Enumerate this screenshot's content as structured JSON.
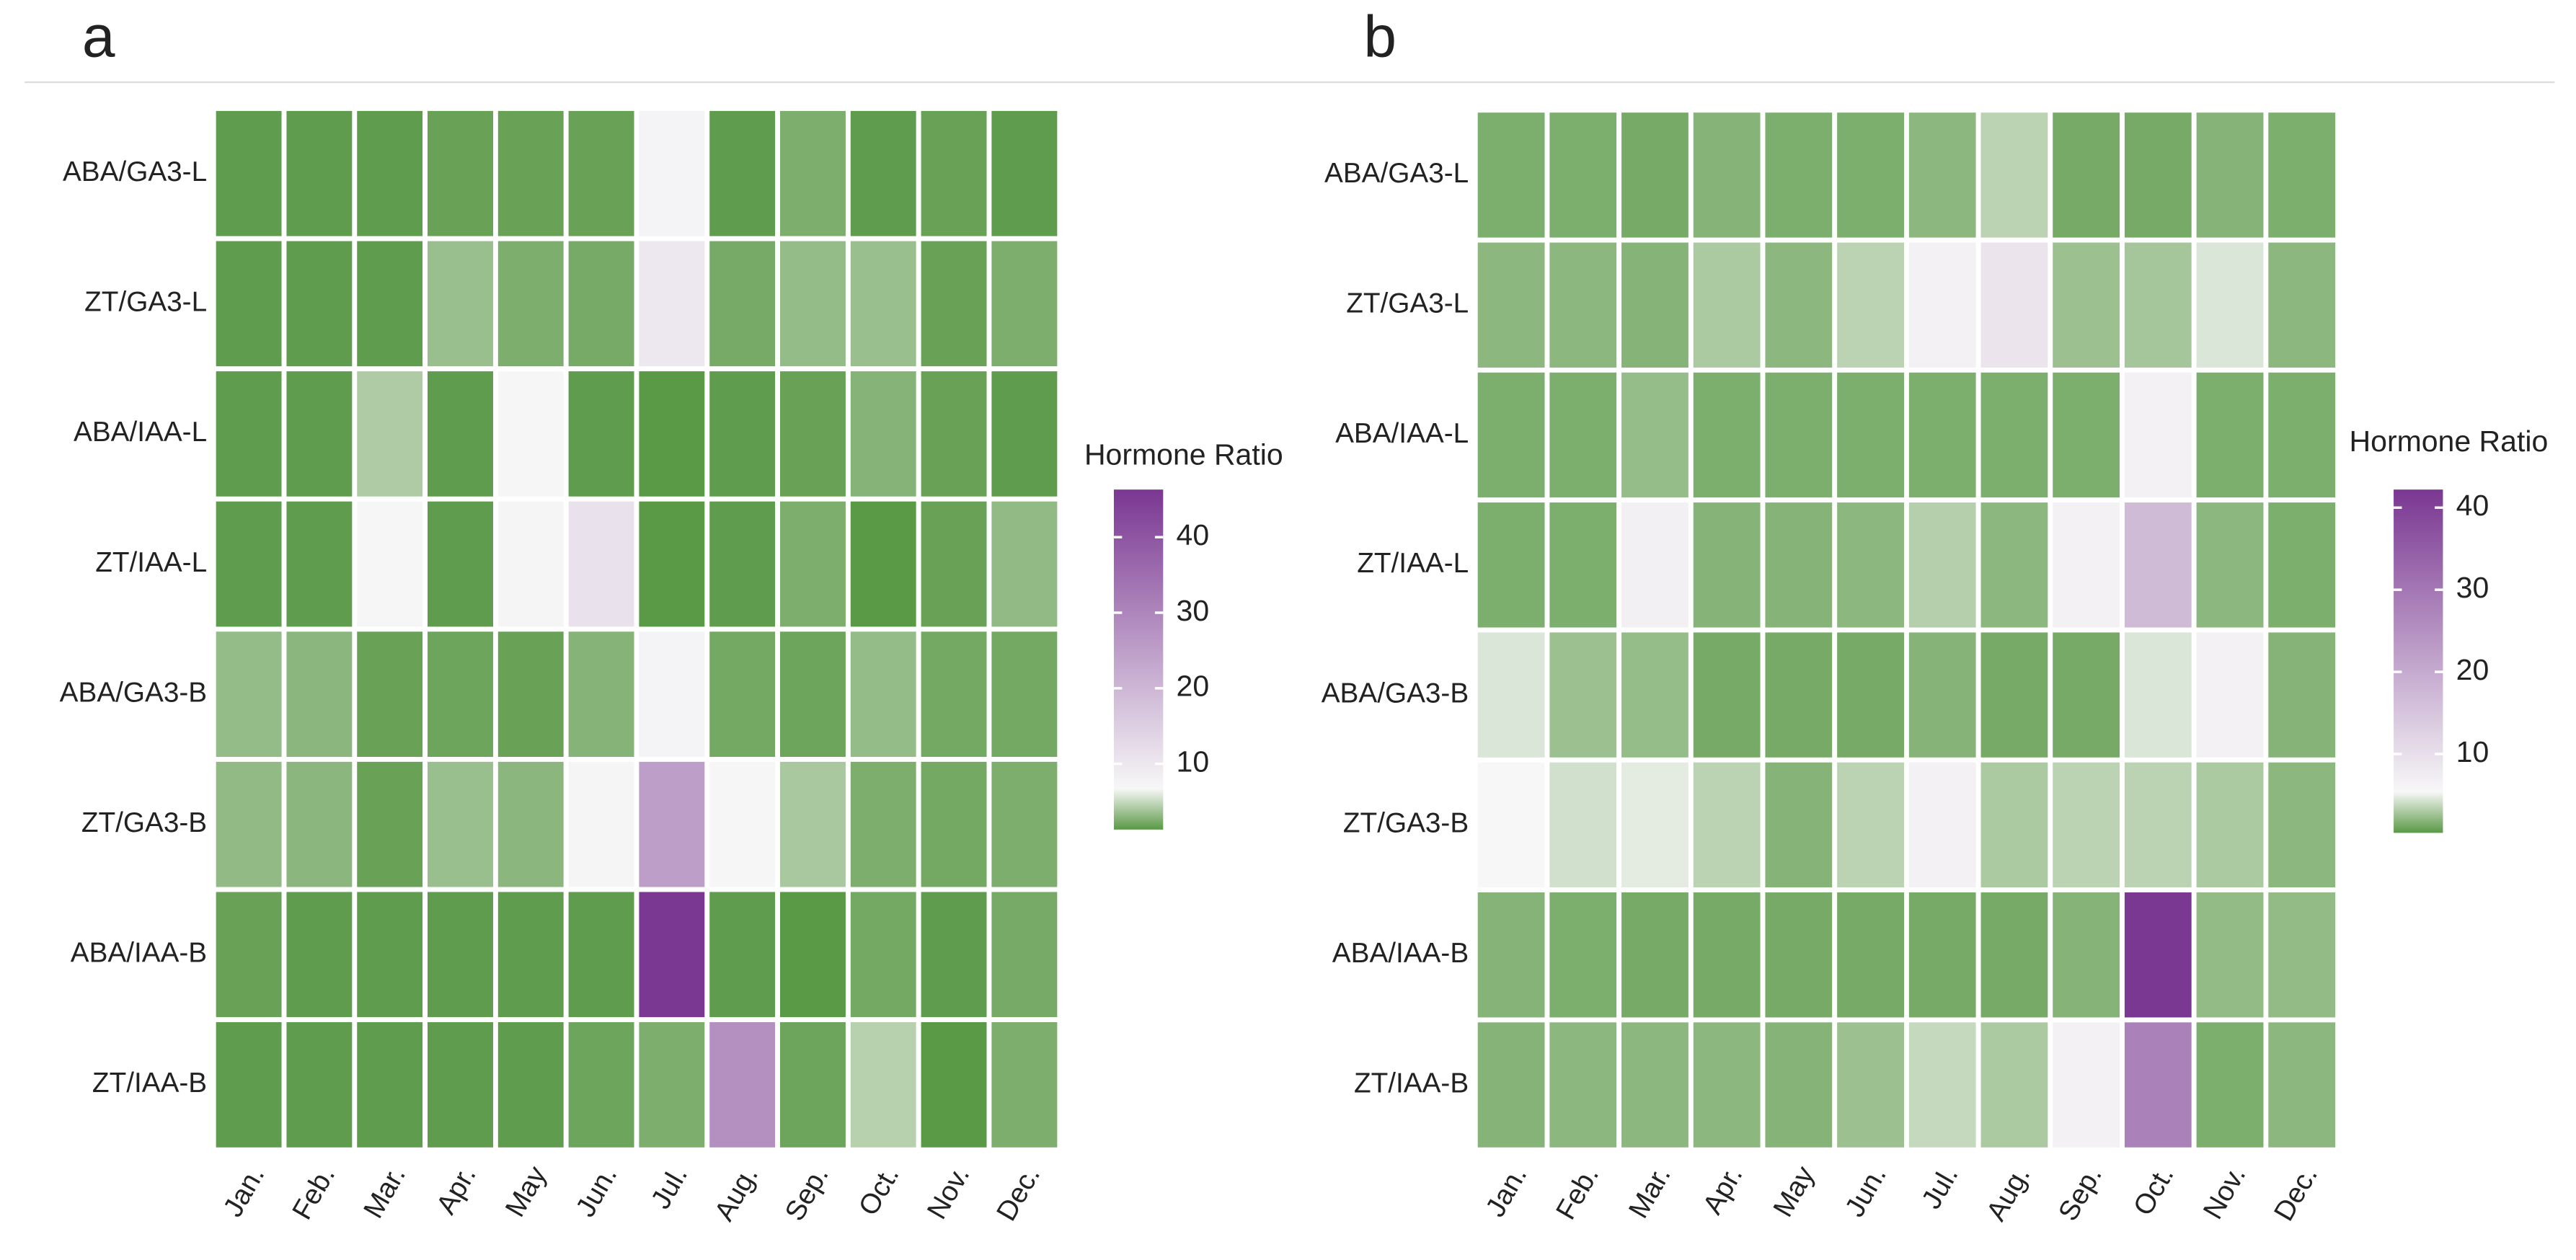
{
  "chart_data": [
    {
      "type": "heatmap",
      "panel_label": "a",
      "x": [
        "Jan.",
        "Feb.",
        "Mar.",
        "Apr.",
        "May",
        "Jun.",
        "Jul.",
        "Aug.",
        "Sep.",
        "Oct.",
        "Nov.",
        "Dec."
      ],
      "y": [
        "ABA/GA3-L",
        "ZT/GA3-L",
        "ABA/IAA-L",
        "ZT/IAA-L",
        "ABA/GA3-B",
        "ZT/GA3-B",
        "ABA/IAA-B",
        "ZT/IAA-B"
      ],
      "values": [
        [
          1.5,
          1.5,
          1.5,
          1.8,
          1.8,
          1.8,
          7.5,
          1.5,
          2.5,
          1.5,
          1.8,
          1.5
        ],
        [
          1.5,
          1.5,
          1.5,
          3.5,
          2.5,
          2.3,
          10,
          2.3,
          3.3,
          3.5,
          1.8,
          2.5
        ],
        [
          1.5,
          1.5,
          4.2,
          1.5,
          7,
          1.5,
          1.3,
          1.5,
          1.8,
          2.8,
          1.8,
          1.5
        ],
        [
          1.5,
          1.5,
          7,
          1.5,
          7.2,
          11,
          1.3,
          1.5,
          2.5,
          1.3,
          1.8,
          3.2
        ],
        [
          3.3,
          3,
          1.8,
          2,
          1.8,
          2.8,
          7.5,
          2.2,
          2,
          3.3,
          2.2,
          2.2
        ],
        [
          3.2,
          3,
          1.8,
          3.5,
          3,
          7.2,
          25,
          7,
          4,
          2.5,
          2.2,
          2.5
        ],
        [
          1.8,
          1.5,
          1.5,
          1.5,
          1.5,
          1.5,
          46,
          1.5,
          1.3,
          2.2,
          1.5,
          2.3
        ],
        [
          1.5,
          1.5,
          1.5,
          1.5,
          1.5,
          2,
          2.5,
          28,
          2,
          4.5,
          1.3,
          2.5
        ]
      ],
      "colorbar_title": "Hormone Ratio",
      "clim": [
        1.3,
        46.3
      ],
      "cticks": [
        10,
        20,
        30,
        40
      ],
      "colors": [
        "#5a9946",
        "#f7f7f7",
        "#7a3792"
      ]
    },
    {
      "type": "heatmap",
      "panel_label": "b",
      "x": [
        "Jan.",
        "Feb.",
        "Mar.",
        "Apr.",
        "May",
        "Jun.",
        "Jul.",
        "Aug.",
        "Sep.",
        "Oct.",
        "Nov.",
        "Dec."
      ],
      "y": [
        "ABA/GA3-L",
        "ZT/GA3-L",
        "ABA/IAA-L",
        "ZT/IAA-L",
        "ABA/GA3-B",
        "ZT/GA3-B",
        "ABA/IAA-B",
        "ZT/IAA-B"
      ],
      "values": [
        [
          1.5,
          1.5,
          1.3,
          1.8,
          1.5,
          1.5,
          2,
          3.5,
          1.3,
          1.3,
          1.8,
          1.5
        ],
        [
          2,
          2,
          1.8,
          3,
          2,
          3.5,
          6.5,
          9,
          2.5,
          2.8,
          4.5,
          2
        ],
        [
          1.5,
          1.5,
          2.3,
          1.5,
          1.5,
          1.5,
          1.5,
          1.5,
          1.5,
          6.5,
          1.5,
          1.5
        ],
        [
          1.5,
          1.5,
          6.8,
          1.8,
          1.8,
          2,
          3.3,
          2,
          6.5,
          17,
          2,
          1.5
        ],
        [
          4.5,
          2.5,
          2.3,
          1.3,
          1.3,
          1.3,
          1.8,
          1.3,
          1.3,
          4.5,
          6.5,
          1.8
        ],
        [
          5.5,
          4.2,
          4.8,
          3.5,
          1.8,
          3.5,
          6.5,
          3,
          3.5,
          3.5,
          3,
          2
        ],
        [
          1.8,
          1.5,
          1.3,
          1.3,
          1.3,
          1.3,
          1.3,
          1.3,
          1.8,
          42,
          2.2,
          2.2
        ],
        [
          1.8,
          2,
          2,
          2,
          1.8,
          2.5,
          3.8,
          3,
          6.5,
          28,
          1.5,
          2
        ]
      ],
      "colorbar_title": "Hormone Ratio",
      "clim": [
        0.4,
        42.2
      ],
      "cticks": [
        10,
        20,
        30,
        40
      ],
      "colors": [
        "#5a9946",
        "#f7f7f7",
        "#7a3792"
      ]
    }
  ]
}
